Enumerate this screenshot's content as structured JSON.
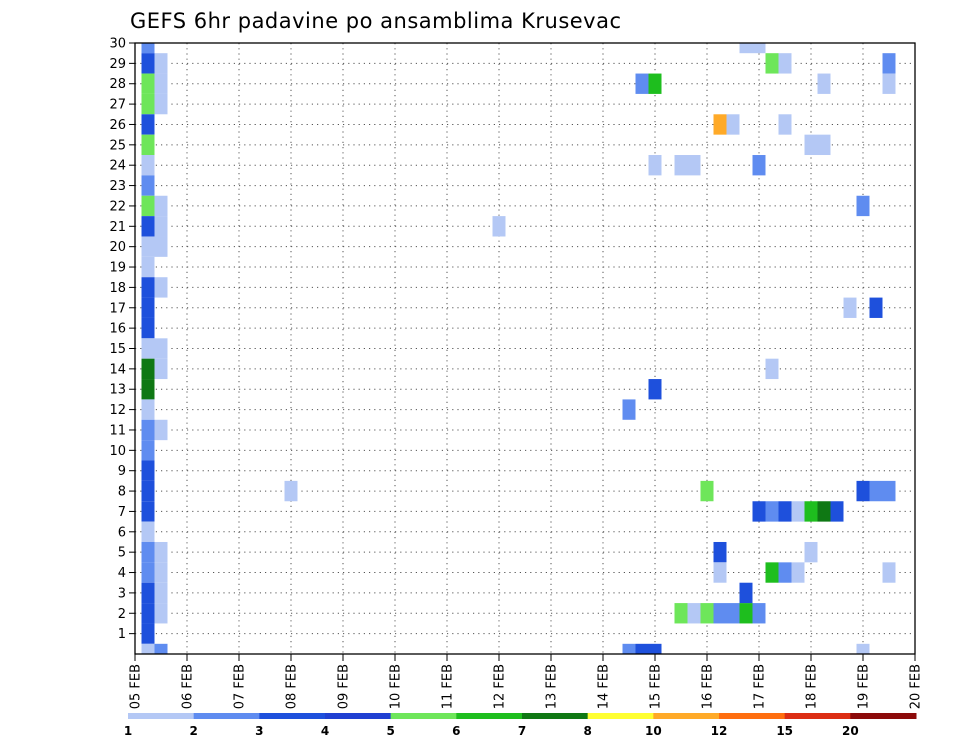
{
  "chart_data": {
    "type": "heatmap",
    "title": "GEFS 6hr padavine po ansamblima Krusevac",
    "xlabel": "",
    "ylabel": "",
    "x_tick_labels": [
      "05 FEB",
      "06 FEB",
      "07 FEB",
      "08 FEB",
      "09 FEB",
      "10 FEB",
      "11 FEB",
      "12 FEB",
      "13 FEB",
      "14 FEB",
      "15 FEB",
      "16 FEB",
      "17 FEB",
      "18 FEB",
      "19 FEB",
      "20 FEB"
    ],
    "x_range_days": [
      0,
      15
    ],
    "y_tick_labels": [
      "1",
      "2",
      "3",
      "4",
      "5",
      "6",
      "7",
      "8",
      "9",
      "10",
      "11",
      "12",
      "13",
      "14",
      "15",
      "16",
      "17",
      "18",
      "19",
      "20",
      "21",
      "22",
      "23",
      "24",
      "25",
      "26",
      "27",
      "28",
      "29",
      "30"
    ],
    "y_range": [
      0,
      30
    ],
    "grid": true,
    "colorbar": {
      "labels": [
        "1",
        "2",
        "3",
        "4",
        "5",
        "6",
        "7",
        "8",
        "10",
        "12",
        "15",
        "20"
      ],
      "colors": [
        "#b4c8f5",
        "#5f8cf0",
        "#1e50dc",
        "#2040d2",
        "#6ee65a",
        "#1ebe1e",
        "#0f7814",
        "#ffff32",
        "#ffaa28",
        "#ff6e0f",
        "#dc2d14",
        "#8c0a0a"
      ]
    },
    "cells": [
      {
        "t": 0.25,
        "m": 30,
        "c": "#5f8cf0"
      },
      {
        "t": 0.25,
        "m": 29,
        "c": "#1e50dc"
      },
      {
        "t": 0.5,
        "m": 29,
        "c": "#b4c8f5"
      },
      {
        "t": 0.25,
        "m": 28,
        "c": "#6ee65a"
      },
      {
        "t": 0.5,
        "m": 28,
        "c": "#b4c8f5"
      },
      {
        "t": 0.25,
        "m": 27,
        "c": "#6ee65a"
      },
      {
        "t": 0.5,
        "m": 27,
        "c": "#b4c8f5"
      },
      {
        "t": 0.25,
        "m": 26,
        "c": "#1e50dc"
      },
      {
        "t": 0.25,
        "m": 25,
        "c": "#6ee65a"
      },
      {
        "t": 0.25,
        "m": 24,
        "c": "#b4c8f5"
      },
      {
        "t": 0.25,
        "m": 23,
        "c": "#5f8cf0"
      },
      {
        "t": 0.25,
        "m": 22,
        "c": "#6ee65a"
      },
      {
        "t": 0.5,
        "m": 22,
        "c": "#b4c8f5"
      },
      {
        "t": 0.25,
        "m": 21,
        "c": "#1e50dc"
      },
      {
        "t": 0.5,
        "m": 21,
        "c": "#b4c8f5"
      },
      {
        "t": 0.25,
        "m": 20,
        "c": "#b4c8f5"
      },
      {
        "t": 0.5,
        "m": 20,
        "c": "#b4c8f5"
      },
      {
        "t": 0.25,
        "m": 19,
        "c": "#b4c8f5"
      },
      {
        "t": 0.25,
        "m": 18,
        "c": "#1e50dc"
      },
      {
        "t": 0.5,
        "m": 18,
        "c": "#b4c8f5"
      },
      {
        "t": 0.25,
        "m": 17,
        "c": "#1e50dc"
      },
      {
        "t": 0.25,
        "m": 16,
        "c": "#1e50dc"
      },
      {
        "t": 0.25,
        "m": 15,
        "c": "#b4c8f5"
      },
      {
        "t": 0.5,
        "m": 15,
        "c": "#b4c8f5"
      },
      {
        "t": 0.25,
        "m": 14,
        "c": "#0f7814"
      },
      {
        "t": 0.5,
        "m": 14,
        "c": "#b4c8f5"
      },
      {
        "t": 0.25,
        "m": 13,
        "c": "#0f7814"
      },
      {
        "t": 0.25,
        "m": 12,
        "c": "#b4c8f5"
      },
      {
        "t": 0.25,
        "m": 11,
        "c": "#5f8cf0"
      },
      {
        "t": 0.5,
        "m": 11,
        "c": "#b4c8f5"
      },
      {
        "t": 0.25,
        "m": 10,
        "c": "#5f8cf0"
      },
      {
        "t": 0.25,
        "m": 9,
        "c": "#1e50dc"
      },
      {
        "t": 0.25,
        "m": 8,
        "c": "#1e50dc"
      },
      {
        "t": 0.25,
        "m": 7,
        "c": "#1e50dc"
      },
      {
        "t": 0.25,
        "m": 6,
        "c": "#b4c8f5"
      },
      {
        "t": 0.25,
        "m": 5,
        "c": "#5f8cf0"
      },
      {
        "t": 0.5,
        "m": 5,
        "c": "#b4c8f5"
      },
      {
        "t": 0.25,
        "m": 4,
        "c": "#5f8cf0"
      },
      {
        "t": 0.5,
        "m": 4,
        "c": "#b4c8f5"
      },
      {
        "t": 0.25,
        "m": 3,
        "c": "#1e50dc"
      },
      {
        "t": 0.5,
        "m": 3,
        "c": "#b4c8f5"
      },
      {
        "t": 0.25,
        "m": 2,
        "c": "#1e50dc"
      },
      {
        "t": 0.5,
        "m": 2,
        "c": "#b4c8f5"
      },
      {
        "t": 0.25,
        "m": 1,
        "c": "#1e50dc"
      },
      {
        "t": 0.25,
        "m": 0,
        "c": "#b4c8f5"
      },
      {
        "t": 0.5,
        "m": 0,
        "c": "#5f8cf0"
      },
      {
        "t": 3.0,
        "m": 8,
        "c": "#b4c8f5"
      },
      {
        "t": 7.0,
        "m": 21,
        "c": "#b4c8f5"
      },
      {
        "t": 9.75,
        "m": 28,
        "c": "#5f8cf0"
      },
      {
        "t": 10.0,
        "m": 28,
        "c": "#1ebe1e"
      },
      {
        "t": 10.0,
        "m": 24,
        "c": "#b4c8f5"
      },
      {
        "t": 10.5,
        "m": 24,
        "c": "#b4c8f5"
      },
      {
        "t": 10.75,
        "m": 24,
        "c": "#b4c8f5"
      },
      {
        "t": 9.5,
        "m": 12,
        "c": "#5f8cf0"
      },
      {
        "t": 10.0,
        "m": 13,
        "c": "#1e50dc"
      },
      {
        "t": 9.5,
        "m": 0,
        "c": "#5f8cf0"
      },
      {
        "t": 9.75,
        "m": 0,
        "c": "#1e50dc"
      },
      {
        "t": 10.0,
        "m": 0,
        "c": "#1e50dc"
      },
      {
        "t": 10.5,
        "m": 2,
        "c": "#6ee65a"
      },
      {
        "t": 10.75,
        "m": 2,
        "c": "#b4c8f5"
      },
      {
        "t": 11.0,
        "m": 2,
        "c": "#6ee65a"
      },
      {
        "t": 11.25,
        "m": 2,
        "c": "#5f8cf0"
      },
      {
        "t": 11.5,
        "m": 2,
        "c": "#5f8cf0"
      },
      {
        "t": 11.75,
        "m": 2,
        "c": "#1ebe1e"
      },
      {
        "t": 12.0,
        "m": 2,
        "c": "#5f8cf0"
      },
      {
        "t": 11.0,
        "m": 8,
        "c": "#6ee65a"
      },
      {
        "t": 11.25,
        "m": 26,
        "c": "#ffaa28"
      },
      {
        "t": 11.5,
        "m": 26,
        "c": "#b4c8f5"
      },
      {
        "t": 11.25,
        "m": 5,
        "c": "#1e50dc"
      },
      {
        "t": 11.25,
        "m": 4,
        "c": "#b4c8f5"
      },
      {
        "t": 11.75,
        "m": 3,
        "c": "#1e50dc"
      },
      {
        "t": 11.75,
        "m": 30,
        "c": "#b4c8f5"
      },
      {
        "t": 12.0,
        "m": 30,
        "c": "#b4c8f5"
      },
      {
        "t": 12.0,
        "m": 24,
        "c": "#5f8cf0"
      },
      {
        "t": 12.0,
        "m": 7,
        "c": "#1e50dc"
      },
      {
        "t": 12.25,
        "m": 7,
        "c": "#5f8cf0"
      },
      {
        "t": 12.5,
        "m": 7,
        "c": "#1e50dc"
      },
      {
        "t": 12.75,
        "m": 7,
        "c": "#b4c8f5"
      },
      {
        "t": 13.0,
        "m": 7,
        "c": "#1ebe1e"
      },
      {
        "t": 13.25,
        "m": 7,
        "c": "#0f7814"
      },
      {
        "t": 13.5,
        "m": 7,
        "c": "#1e50dc"
      },
      {
        "t": 12.25,
        "m": 29,
        "c": "#6ee65a"
      },
      {
        "t": 12.5,
        "m": 29,
        "c": "#b4c8f5"
      },
      {
        "t": 12.25,
        "m": 14,
        "c": "#b4c8f5"
      },
      {
        "t": 12.5,
        "m": 26,
        "c": "#b4c8f5"
      },
      {
        "t": 12.25,
        "m": 4,
        "c": "#1ebe1e"
      },
      {
        "t": 12.5,
        "m": 4,
        "c": "#5f8cf0"
      },
      {
        "t": 12.75,
        "m": 4,
        "c": "#b4c8f5"
      },
      {
        "t": 13.0,
        "m": 5,
        "c": "#b4c8f5"
      },
      {
        "t": 13.0,
        "m": 25,
        "c": "#b4c8f5"
      },
      {
        "t": 13.25,
        "m": 25,
        "c": "#b4c8f5"
      },
      {
        "t": 13.25,
        "m": 28,
        "c": "#b4c8f5"
      },
      {
        "t": 13.75,
        "m": 17,
        "c": "#b4c8f5"
      },
      {
        "t": 14.25,
        "m": 17,
        "c": "#1e50dc"
      },
      {
        "t": 14.0,
        "m": 22,
        "c": "#5f8cf0"
      },
      {
        "t": 14.0,
        "m": 8,
        "c": "#1e50dc"
      },
      {
        "t": 14.25,
        "m": 8,
        "c": "#5f8cf0"
      },
      {
        "t": 14.5,
        "m": 8,
        "c": "#5f8cf0"
      },
      {
        "t": 14.0,
        "m": 0,
        "c": "#b4c8f5"
      },
      {
        "t": 14.5,
        "m": 29,
        "c": "#5f8cf0"
      },
      {
        "t": 14.5,
        "m": 28,
        "c": "#b4c8f5"
      },
      {
        "t": 14.5,
        "m": 4,
        "c": "#b4c8f5"
      }
    ]
  }
}
